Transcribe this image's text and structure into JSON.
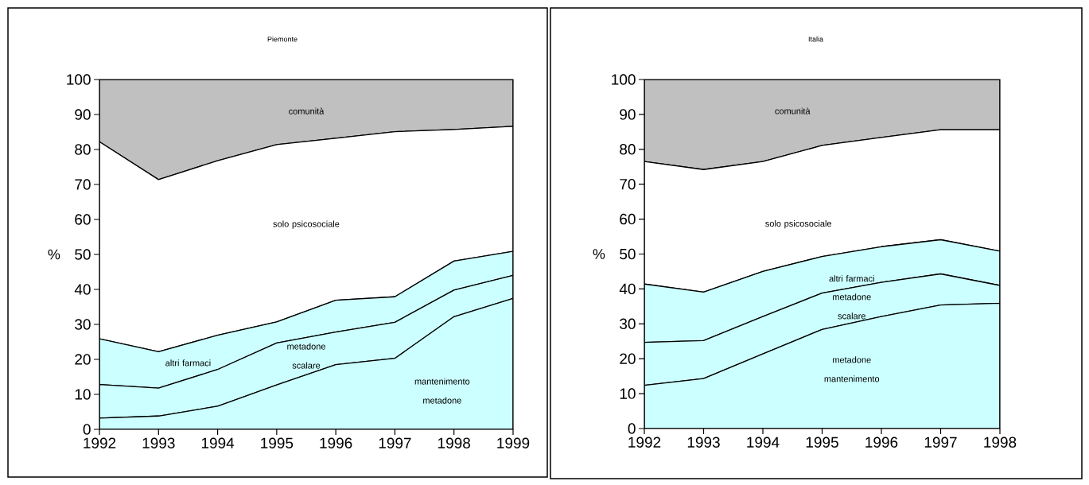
{
  "chart_data": [
    {
      "type": "area",
      "stacked": true,
      "title": "Piemonte",
      "ylabel": "%",
      "x": [
        1992,
        1993,
        1994,
        1995,
        1996,
        1997,
        1998,
        1999
      ],
      "xlim": [
        1992,
        1999
      ],
      "xticks": [
        1992,
        1993,
        1994,
        1995,
        1996,
        1997,
        1998,
        1999
      ],
      "ylim": [
        0,
        100
      ],
      "yticks": [
        0,
        10,
        20,
        30,
        40,
        50,
        60,
        70,
        80,
        90,
        100
      ],
      "series": [
        {
          "name": "mantenimento metadone",
          "color": "#ccffff",
          "values": [
            3.2,
            3.8,
            6.6,
            12.7,
            18.5,
            20.3,
            32.2,
            37.4
          ]
        },
        {
          "name": "metadone scalare",
          "color": "#ccffff",
          "values": [
            9.6,
            8.0,
            10.5,
            12.0,
            9.3,
            10.3,
            7.6,
            6.6
          ]
        },
        {
          "name": "altri farmaci",
          "color": "#ccffff",
          "values": [
            13.1,
            10.4,
            9.8,
            6.0,
            9.1,
            7.3,
            8.3,
            6.9
          ]
        },
        {
          "name": "solo psicosociale",
          "color": "#ffffff",
          "values": [
            56.3,
            49.2,
            49.9,
            50.7,
            46.3,
            47.2,
            37.6,
            35.7
          ]
        },
        {
          "name": "comunità",
          "color": "#c0c0c0",
          "values": [
            17.8,
            28.6,
            23.2,
            18.6,
            16.8,
            14.9,
            14.3,
            13.4
          ]
        }
      ]
    },
    {
      "type": "area",
      "stacked": true,
      "title": "Italia",
      "ylabel": "%",
      "x": [
        1992,
        1993,
        1994,
        1995,
        1996,
        1997,
        1998
      ],
      "xlim": [
        1992,
        1998
      ],
      "xticks": [
        1992,
        1993,
        1994,
        1995,
        1996,
        1997,
        1998
      ],
      "ylim": [
        0,
        100
      ],
      "yticks": [
        0,
        10,
        20,
        30,
        40,
        50,
        60,
        70,
        80,
        90,
        100
      ],
      "series": [
        {
          "name": "metadone mantenimento",
          "color": "#ccffff",
          "values": [
            12.4,
            14.3,
            21.4,
            28.4,
            32.1,
            35.4,
            35.9
          ]
        },
        {
          "name": "metadone scalare",
          "color": "#ccffff",
          "values": [
            12.3,
            10.9,
            10.7,
            10.4,
            9.8,
            8.9,
            5.1
          ]
        },
        {
          "name": "altri farmaci",
          "color": "#ccffff",
          "values": [
            16.7,
            13.9,
            12.9,
            10.5,
            10.2,
            9.8,
            9.8
          ]
        },
        {
          "name": "solo psicosociale",
          "color": "#ffffff",
          "values": [
            35.1,
            35.1,
            31.5,
            31.8,
            31.3,
            31.5,
            34.8
          ]
        },
        {
          "name": "comunità",
          "color": "#c0c0c0",
          "values": [
            23.5,
            25.8,
            23.5,
            18.9,
            16.6,
            14.4,
            14.4
          ]
        }
      ]
    }
  ]
}
